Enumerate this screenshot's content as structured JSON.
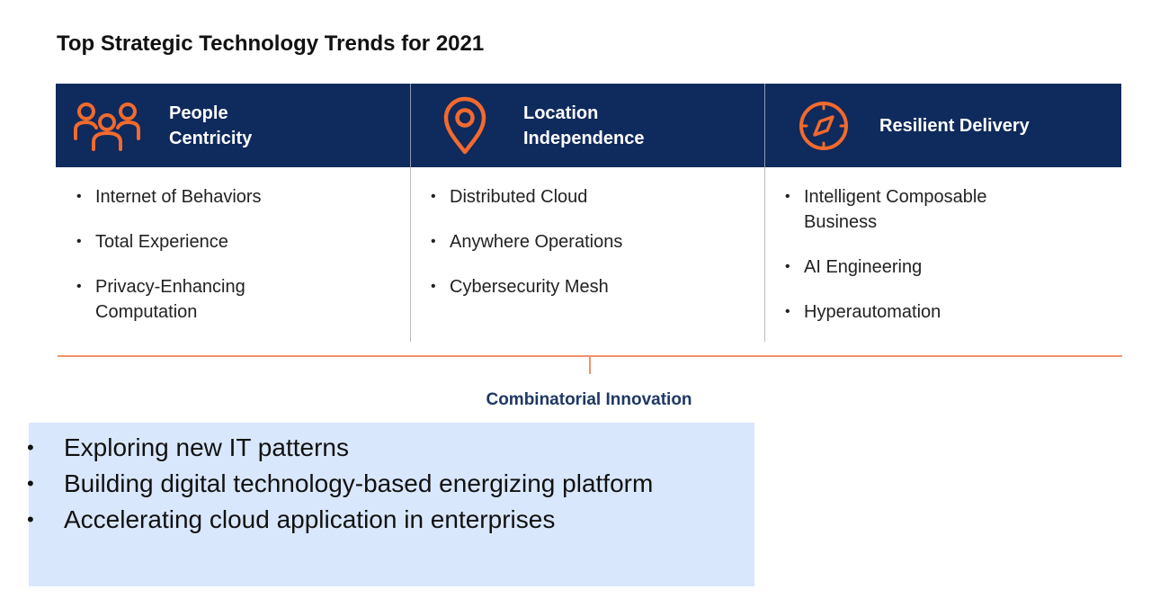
{
  "title": "Top Strategic Technology Trends for 2021",
  "colors": {
    "header_bg": "#0f2a5c",
    "icon_orange": "#f26a2e",
    "connector": "#f0936a",
    "box_bg": "#d9e7fc"
  },
  "columns": [
    {
      "icon": "people-icon",
      "header": "People\nCentricity",
      "items": [
        "Internet of Behaviors",
        "Total Experience",
        "Privacy-Enhancing Computation"
      ]
    },
    {
      "icon": "location-pin-icon",
      "header": "Location\nIndependence",
      "items": [
        "Distributed Cloud",
        "Anywhere Operations",
        "Cybersecurity Mesh"
      ]
    },
    {
      "icon": "compass-icon",
      "header": "Resilient Delivery",
      "items": [
        "Intelligent Composable Business",
        "AI Engineering",
        "Hyperautomation"
      ]
    }
  ],
  "combinatorial_label": "Combinatorial Innovation",
  "highlights": [
    "Exploring new IT patterns",
    "Building digital technology-based energizing platform",
    "Accelerating cloud application in enterprises"
  ]
}
